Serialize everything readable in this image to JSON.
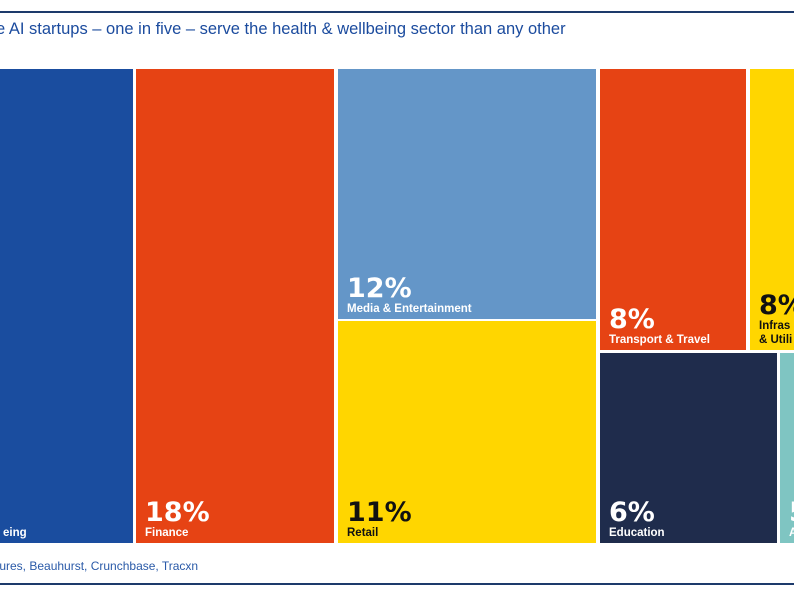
{
  "title": "e AI startups – one in five – serve the health & wellbeing sector than any other",
  "source": "tures, Beauhurst, Crunchbase, Tracxn",
  "colors": {
    "rule": "#1d3a6b",
    "title": "#1b4b9e"
  },
  "chart_data": {
    "type": "treemap",
    "title": "e AI startups – one in five – serve the health & wellbeing sector than any other",
    "cells": [
      {
        "label": "eing",
        "value": 20,
        "value_label": "",
        "color": "#1a4d9f",
        "text_color": "#ffffff"
      },
      {
        "label": "Finance",
        "value": 18,
        "value_label": "18%",
        "color": "#e64314",
        "text_color": "#ffffff"
      },
      {
        "label": "Media & Entertainment",
        "value": 12,
        "value_label": "12%",
        "color": "#6496c8",
        "text_color": "#ffffff"
      },
      {
        "label": "Retail",
        "value": 11,
        "value_label": "11%",
        "color": "#ffd600",
        "text_color": "#111111"
      },
      {
        "label": "Transport & Travel",
        "value": 8,
        "value_label": "8%",
        "color": "#e64314",
        "text_color": "#ffffff"
      },
      {
        "label": "Infras",
        "label2": "& Utili",
        "value": 8,
        "value_label": "8%",
        "color": "#ffd600",
        "text_color": "#111111"
      },
      {
        "label": "Education",
        "value": 6,
        "value_label": "6%",
        "color": "#1f2c4c",
        "text_color": "#ffffff"
      },
      {
        "label": "A",
        "value": 5,
        "value_label": "5",
        "color": "#7fc5c2",
        "text_color": "#ffffff"
      }
    ]
  }
}
